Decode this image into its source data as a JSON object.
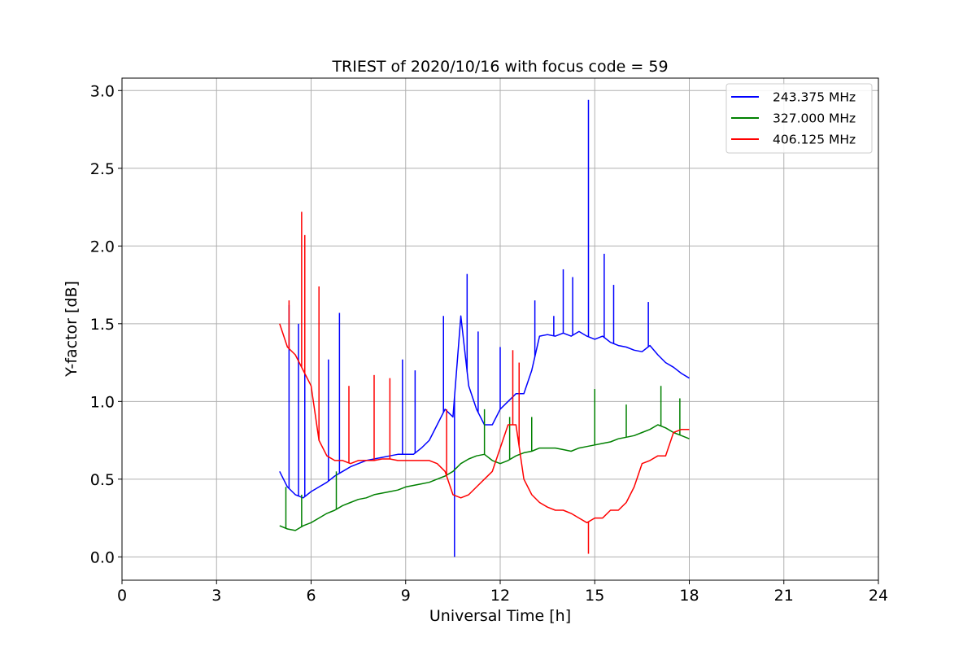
{
  "chart_data": {
    "type": "line",
    "title": "TRIEST of 2020/10/16 with focus code = 59",
    "xlabel": "Universal Time [h]",
    "ylabel": "Y-factor [dB]",
    "xlim": [
      0,
      24
    ],
    "ylim": [
      -0.15,
      3.08
    ],
    "xticks": [
      0,
      3,
      6,
      9,
      12,
      15,
      18,
      21,
      24
    ],
    "yticks": [
      0.0,
      0.5,
      1.0,
      1.5,
      2.0,
      2.5,
      3.0
    ],
    "xtick_labels": [
      "0",
      "3",
      "6",
      "9",
      "12",
      "15",
      "18",
      "21",
      "24"
    ],
    "ytick_labels": [
      "0.0",
      "0.5",
      "1.0",
      "1.5",
      "2.0",
      "2.5",
      "3.0"
    ],
    "grid": true,
    "legend_position": "top-right",
    "series": [
      {
        "name": "243.375 MHz",
        "color": "#0000ff",
        "x": [
          5.0,
          5.25,
          5.5,
          5.75,
          6.0,
          6.25,
          6.5,
          6.75,
          7.0,
          7.25,
          7.5,
          7.75,
          8.0,
          8.25,
          8.5,
          8.75,
          9.0,
          9.25,
          9.5,
          9.75,
          10.0,
          10.25,
          10.5,
          10.75,
          11.0,
          11.25,
          11.5,
          11.75,
          12.0,
          12.25,
          12.5,
          12.75,
          13.0,
          13.25,
          13.5,
          13.75,
          14.0,
          14.25,
          14.5,
          14.75,
          15.0,
          15.25,
          15.5,
          15.75,
          16.0,
          16.25,
          16.5,
          16.75,
          17.0,
          17.25,
          17.5,
          17.75,
          18.0
        ],
        "y": [
          0.55,
          0.45,
          0.4,
          0.38,
          0.42,
          0.45,
          0.48,
          0.52,
          0.55,
          0.58,
          0.6,
          0.62,
          0.63,
          0.64,
          0.65,
          0.66,
          0.66,
          0.66,
          0.7,
          0.75,
          0.85,
          0.95,
          0.9,
          1.55,
          1.1,
          0.95,
          0.85,
          0.85,
          0.95,
          1.0,
          1.05,
          1.05,
          1.2,
          1.42,
          1.43,
          1.42,
          1.44,
          1.42,
          1.45,
          1.42,
          1.4,
          1.42,
          1.38,
          1.36,
          1.35,
          1.33,
          1.32,
          1.36,
          1.3,
          1.25,
          1.22,
          1.18,
          1.15
        ],
        "spikes": [
          [
            5.3,
            1.62
          ],
          [
            5.6,
            1.5
          ],
          [
            5.8,
            1.42
          ],
          [
            6.55,
            1.27
          ],
          [
            6.9,
            1.57
          ],
          [
            8.9,
            1.27
          ],
          [
            9.3,
            1.2
          ],
          [
            10.2,
            1.55
          ],
          [
            10.55,
            0.0
          ],
          [
            10.95,
            1.82
          ],
          [
            11.3,
            1.45
          ],
          [
            12.0,
            1.35
          ],
          [
            13.1,
            1.65
          ],
          [
            13.7,
            1.55
          ],
          [
            14.0,
            1.85
          ],
          [
            14.3,
            1.8
          ],
          [
            14.8,
            2.94
          ],
          [
            15.3,
            1.95
          ],
          [
            15.6,
            1.75
          ],
          [
            16.7,
            1.64
          ]
        ]
      },
      {
        "name": "327.000 MHz",
        "color": "#008000",
        "x": [
          5.0,
          5.25,
          5.5,
          5.75,
          6.0,
          6.25,
          6.5,
          6.75,
          7.0,
          7.25,
          7.5,
          7.75,
          8.0,
          8.25,
          8.5,
          8.75,
          9.0,
          9.25,
          9.5,
          9.75,
          10.0,
          10.25,
          10.5,
          10.75,
          11.0,
          11.25,
          11.5,
          11.75,
          12.0,
          12.25,
          12.5,
          12.75,
          13.0,
          13.25,
          13.5,
          13.75,
          14.0,
          14.25,
          14.5,
          14.75,
          15.0,
          15.25,
          15.5,
          15.75,
          16.0,
          16.25,
          16.5,
          16.75,
          17.0,
          17.25,
          17.5,
          17.75,
          18.0
        ],
        "y": [
          0.2,
          0.18,
          0.17,
          0.2,
          0.22,
          0.25,
          0.28,
          0.3,
          0.33,
          0.35,
          0.37,
          0.38,
          0.4,
          0.41,
          0.42,
          0.43,
          0.45,
          0.46,
          0.47,
          0.48,
          0.5,
          0.52,
          0.55,
          0.6,
          0.63,
          0.65,
          0.66,
          0.62,
          0.6,
          0.62,
          0.65,
          0.67,
          0.68,
          0.7,
          0.7,
          0.7,
          0.69,
          0.68,
          0.7,
          0.71,
          0.72,
          0.73,
          0.74,
          0.76,
          0.77,
          0.78,
          0.8,
          0.82,
          0.85,
          0.83,
          0.8,
          0.78,
          0.76
        ],
        "spikes": [
          [
            5.2,
            0.45
          ],
          [
            5.7,
            0.4
          ],
          [
            6.8,
            0.55
          ],
          [
            11.5,
            0.95
          ],
          [
            12.3,
            0.9
          ],
          [
            13.0,
            0.9
          ],
          [
            15.0,
            1.08
          ],
          [
            16.0,
            0.98
          ],
          [
            17.1,
            1.1
          ],
          [
            17.7,
            1.02
          ]
        ]
      },
      {
        "name": "406.125 MHz",
        "color": "#ff0000",
        "x": [
          5.0,
          5.25,
          5.5,
          5.75,
          6.0,
          6.25,
          6.5,
          6.75,
          7.0,
          7.25,
          7.5,
          7.75,
          8.0,
          8.25,
          8.5,
          8.75,
          9.0,
          9.25,
          9.5,
          9.75,
          10.0,
          10.25,
          10.5,
          10.75,
          11.0,
          11.25,
          11.5,
          11.75,
          12.0,
          12.25,
          12.5,
          12.75,
          13.0,
          13.25,
          13.5,
          13.75,
          14.0,
          14.25,
          14.5,
          14.75,
          15.0,
          15.25,
          15.5,
          15.75,
          16.0,
          16.25,
          16.5,
          16.75,
          17.0,
          17.25,
          17.5,
          17.75,
          18.0
        ],
        "y": [
          1.5,
          1.35,
          1.3,
          1.2,
          1.1,
          0.75,
          0.65,
          0.62,
          0.62,
          0.6,
          0.62,
          0.62,
          0.62,
          0.63,
          0.63,
          0.62,
          0.62,
          0.62,
          0.62,
          0.62,
          0.6,
          0.55,
          0.4,
          0.38,
          0.4,
          0.45,
          0.5,
          0.55,
          0.7,
          0.85,
          0.85,
          0.5,
          0.4,
          0.35,
          0.32,
          0.3,
          0.3,
          0.28,
          0.25,
          0.22,
          0.25,
          0.25,
          0.3,
          0.3,
          0.35,
          0.45,
          0.6,
          0.62,
          0.65,
          0.65,
          0.8,
          0.82,
          0.82
        ],
        "spikes": [
          [
            5.3,
            1.65
          ],
          [
            5.7,
            2.22
          ],
          [
            5.8,
            2.07
          ],
          [
            6.25,
            1.74
          ],
          [
            7.2,
            1.1
          ],
          [
            8.0,
            1.17
          ],
          [
            8.5,
            1.15
          ],
          [
            10.3,
            0.95
          ],
          [
            12.4,
            1.33
          ],
          [
            12.6,
            1.25
          ],
          [
            14.8,
            0.02
          ]
        ]
      }
    ]
  }
}
